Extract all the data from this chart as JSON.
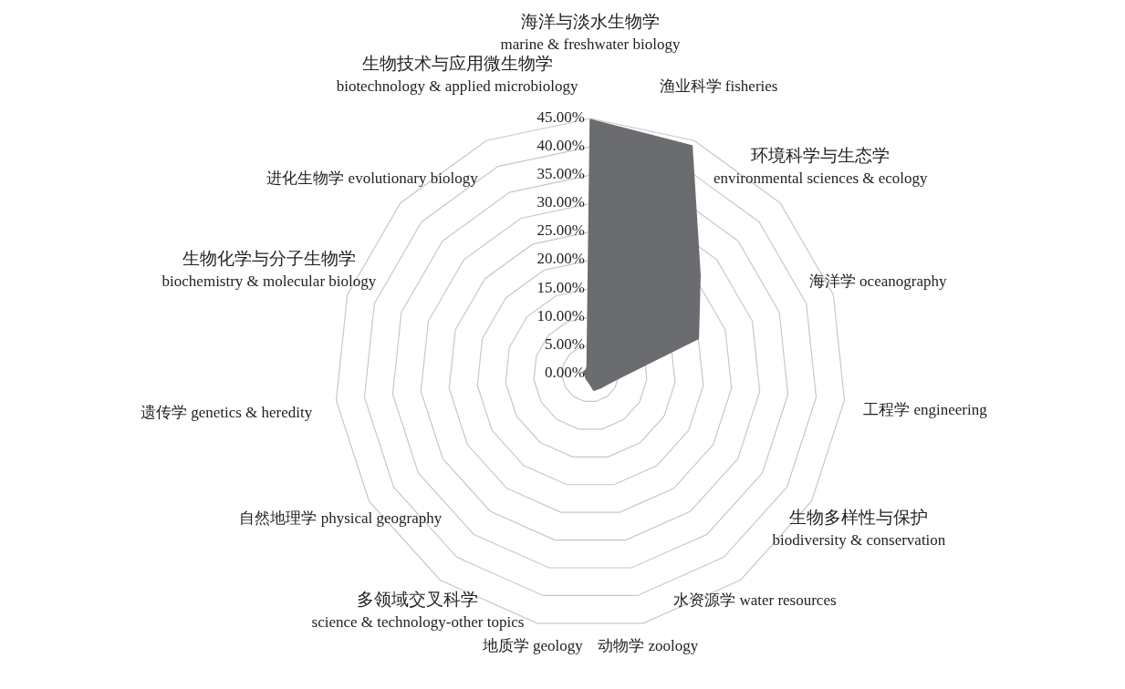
{
  "chart_data": {
    "type": "radar",
    "categories": [
      "海洋与淡水生物学\nmarine & freshwater biology",
      "渔业科学 fisheries",
      "环境科学与生态学\nenvironmental sciences & ecology",
      "海洋学 oceanography",
      "工程学 engineering",
      "生物多样性与保护\nbiodiversity & conservation",
      "水资源学 water resources",
      "动物学 zoology",
      "地质学 geology",
      "多领域交叉科学\nscience & technology-other topics",
      "自然地理学 physical geography",
      "遗传学 genetics & heredity",
      "生物化学与分子生物学\nbiochemistry & molecular biology",
      "进化生物学 evolutionary biology",
      "生物技术与应用微生物学\nbiotechnology & applied microbiology"
    ],
    "series": [
      {
        "color": "#6b6c70",
        "values": [
          44.8,
          44,
          26,
          20,
          5.5,
          3.6,
          3.1,
          3,
          1.5,
          1.2,
          1,
          1,
          1.2,
          1,
          1.4
        ]
      }
    ],
    "ylim": [
      0,
      45
    ],
    "yticks": [
      {
        "value": 0,
        "label": "0.00%"
      },
      {
        "value": 5,
        "label": "5.00%"
      },
      {
        "value": 10,
        "label": "10.00%"
      },
      {
        "value": 15,
        "label": "15.00%"
      },
      {
        "value": 20,
        "label": "20.00%"
      },
      {
        "value": 25,
        "label": "25.00%"
      },
      {
        "value": 30,
        "label": "30.00%"
      },
      {
        "value": 35,
        "label": "35.00%"
      },
      {
        "value": 40,
        "label": "40.00%"
      },
      {
        "value": 45,
        "label": "45.00%"
      }
    ],
    "grid": true
  }
}
